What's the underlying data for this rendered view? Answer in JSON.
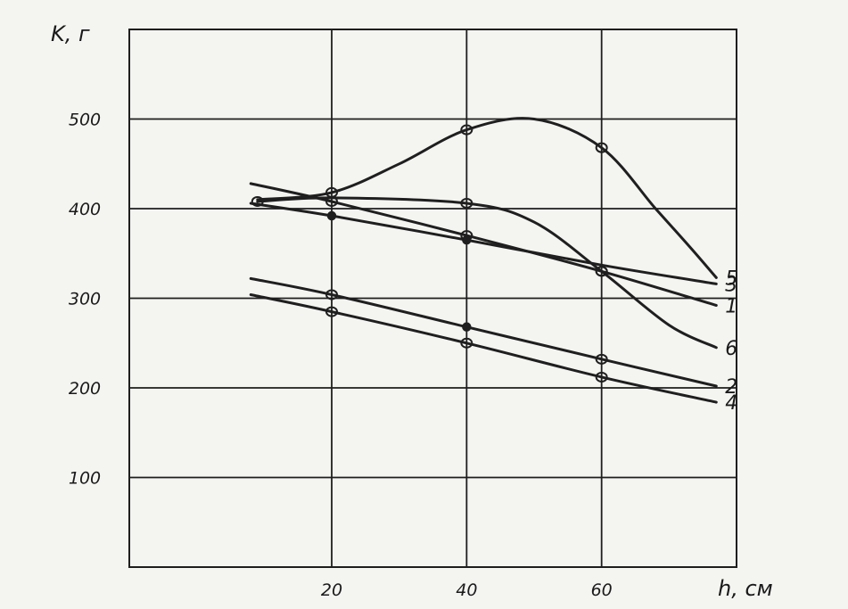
{
  "chart_data": {
    "type": "line",
    "title": "",
    "xlabel": "h, см",
    "ylabel": "K, г",
    "xlim": [
      -10,
      80
    ],
    "ylim": [
      0,
      600
    ],
    "x_ticks": [
      "20",
      "40",
      "60"
    ],
    "y_ticks": [
      "100",
      "200",
      "300",
      "400",
      "500"
    ],
    "grid": true,
    "series": [
      {
        "name": "1",
        "marker": "open",
        "x": [
          8,
          20,
          40,
          60,
          77
        ],
        "y": [
          428,
          408,
          370,
          330,
          292
        ],
        "marked": [
          1,
          2,
          3
        ]
      },
      {
        "name": "2",
        "marker": "open",
        "x": [
          8,
          20,
          40,
          60,
          77
        ],
        "y": [
          322,
          304,
          268,
          232,
          202
        ],
        "marked": [
          1,
          3
        ]
      },
      {
        "name": "3",
        "marker": "filled",
        "x": [
          8,
          20,
          40,
          60,
          77
        ],
        "y": [
          406,
          392,
          365,
          337,
          316
        ],
        "marked": [
          1,
          2
        ]
      },
      {
        "name": "4",
        "marker": "open",
        "x": [
          8,
          20,
          40,
          60,
          77
        ],
        "y": [
          304,
          285,
          250,
          212,
          184
        ],
        "marked": [
          1,
          2,
          3
        ]
      },
      {
        "name": "5",
        "marker": "open",
        "x": [
          9,
          20,
          30,
          40,
          50,
          60,
          68,
          73,
          77
        ],
        "y": [
          410,
          418,
          450,
          488,
          500,
          468,
          400,
          358,
          323
        ],
        "marked": [
          1,
          3,
          5
        ]
      },
      {
        "name": "6",
        "marker": "open",
        "x": [
          9,
          20,
          40,
          50,
          60,
          70,
          77
        ],
        "y": [
          408,
          412,
          406,
          385,
          330,
          270,
          245
        ],
        "marked": [
          0,
          2,
          4
        ]
      },
      {
        "name": "",
        "marker": "filled",
        "x": [
          40
        ],
        "y": [
          268
        ],
        "marked": [
          0
        ]
      }
    ]
  }
}
